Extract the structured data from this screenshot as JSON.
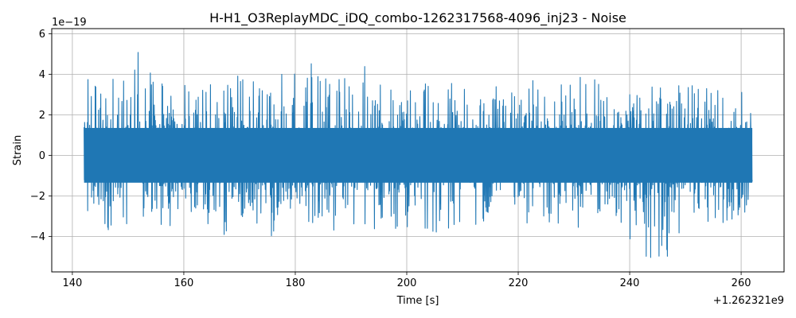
{
  "chart_data": {
    "type": "line",
    "title": "H-H1_O3ReplayMDC_iDQ_combo-1262317568-4096_inj23 - Noise",
    "xlabel": "Time [s]",
    "ylabel": "Strain",
    "x_offset_label": "+1.262321e9",
    "y_exponent_label": "1e−19",
    "xlim": [
      136.3,
      267.7
    ],
    "ylim": [
      -5.75,
      6.25
    ],
    "x_range_data": [
      142.1,
      262.0
    ],
    "grid": true,
    "xticks": [
      140,
      160,
      180,
      200,
      220,
      240,
      260
    ],
    "xtick_labels": [
      "140",
      "160",
      "180",
      "200",
      "220",
      "240",
      "260"
    ],
    "yticks": [
      -4,
      -2,
      0,
      2,
      4,
      6
    ],
    "ytick_labels": [
      "−4",
      "−2",
      "0",
      "2",
      "4",
      "6"
    ],
    "series": [
      {
        "color": "#1f77b4",
        "envelope_x": [
          142.1,
          142.7,
          143.0,
          144.0,
          146.9,
          149.5,
          150.0,
          152.8,
          155.0,
          160.0,
          163.4,
          167.5,
          169.3,
          170.0,
          175.5,
          177.7,
          180.0,
          183.0,
          187.5,
          190.0,
          193.1,
          195.0,
          200.0,
          204.6,
          210.0,
          213.2,
          215.5,
          219.9,
          225.5,
          230.0,
          232.1,
          235.0,
          240.0,
          243.3,
          247.5,
          250.0,
          255.0,
          260.0,
          262.0
        ],
        "envelope_upper": [
          2.4,
          3.5,
          4.9,
          3.6,
          4.0,
          3.7,
          4.0,
          5.85,
          3.8,
          3.6,
          3.8,
          4.0,
          4.95,
          4.0,
          3.2,
          4.4,
          4.0,
          4.6,
          3.8,
          4.0,
          4.8,
          3.5,
          3.6,
          3.7,
          3.5,
          3.6,
          4.5,
          3.7,
          3.8,
          3.5,
          4.6,
          3.6,
          3.8,
          3.6,
          3.5,
          3.6,
          3.6,
          3.2,
          3.0
        ],
        "envelope_lower": [
          -1.9,
          -3.6,
          -3.0,
          -3.0,
          -4.85,
          -3.5,
          -3.4,
          -3.4,
          -4.0,
          -3.0,
          -3.2,
          -4.0,
          -3.5,
          -3.2,
          -4.5,
          -3.5,
          -3.2,
          -3.5,
          -3.8,
          -3.5,
          -3.6,
          -3.8,
          -3.6,
          -4.1,
          -3.6,
          -3.4,
          -3.4,
          -3.5,
          -3.5,
          -3.6,
          -3.6,
          -3.2,
          -4.2,
          -5.2,
          -5.0,
          -3.5,
          -3.4,
          -3.2,
          -2.0
        ]
      }
    ]
  }
}
